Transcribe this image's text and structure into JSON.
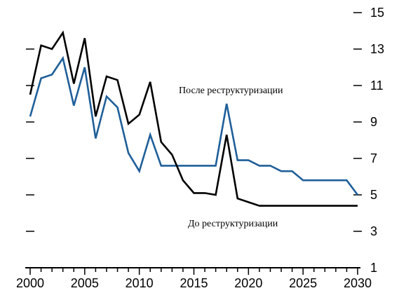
{
  "chart_data": {
    "type": "line",
    "x": [
      2000,
      2001,
      2002,
      2003,
      2004,
      2005,
      2006,
      2007,
      2008,
      2009,
      2010,
      2011,
      2012,
      2013,
      2014,
      2015,
      2016,
      2017,
      2018,
      2019,
      2020,
      2021,
      2022,
      2023,
      2024,
      2025,
      2026,
      2027,
      2028,
      2029,
      2030
    ],
    "series": [
      {
        "name": "После реструктуризации",
        "color": "#1f5f99",
        "values": [
          9.3,
          11.4,
          11.6,
          12.5,
          9.9,
          12.0,
          8.1,
          10.4,
          9.8,
          7.3,
          6.3,
          8.3,
          6.6,
          6.6,
          6.6,
          6.6,
          6.6,
          6.6,
          10.0,
          6.9,
          6.9,
          6.6,
          6.6,
          6.3,
          6.3,
          5.8,
          5.8,
          5.8,
          5.8,
          5.8,
          5.0
        ]
      },
      {
        "name": "До реструктуризации",
        "color": "#000000",
        "values": [
          10.5,
          13.2,
          13.0,
          13.9,
          11.1,
          13.6,
          9.3,
          11.5,
          11.3,
          8.9,
          9.4,
          11.2,
          7.9,
          7.2,
          5.8,
          5.1,
          5.1,
          5.0,
          8.3,
          4.8,
          4.6,
          4.4,
          4.4,
          4.4,
          4.4,
          4.4,
          4.4,
          4.4,
          4.4,
          4.4,
          4.4
        ]
      }
    ],
    "xlim": [
      2000,
      2030
    ],
    "ylim": [
      1,
      15
    ],
    "x_ticks": [
      {
        "value": 2000,
        "label": "2000"
      },
      {
        "value": 2005,
        "label": "2005"
      },
      {
        "value": 2010,
        "label": "2010"
      },
      {
        "value": 2015,
        "label": "2015"
      },
      {
        "value": 2020,
        "label": "2020"
      },
      {
        "value": 2025,
        "label": "2025"
      },
      {
        "value": 2030,
        "label": "2030"
      }
    ],
    "y_ticks_right": [
      {
        "value": 15,
        "label": "15"
      },
      {
        "value": 13,
        "label": "13"
      },
      {
        "value": 11,
        "label": "11"
      },
      {
        "value": 9,
        "label": "9"
      },
      {
        "value": 7,
        "label": "7"
      },
      {
        "value": 5,
        "label": "5"
      },
      {
        "value": 3,
        "label": "3"
      },
      {
        "value": 1,
        "label": "1"
      }
    ],
    "y_ticks_left": [
      13,
      11,
      9,
      7,
      5,
      3
    ],
    "annotations": [
      {
        "text": "После реструктуризации",
        "series": "После реструктуризации"
      },
      {
        "text": "До реструктуризации",
        "series": "До реструктуризации"
      }
    ],
    "grid": false,
    "legend": "none"
  }
}
